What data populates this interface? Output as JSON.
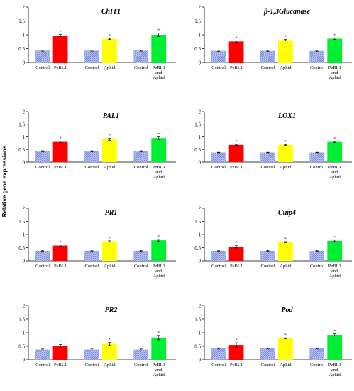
{
  "figure": {
    "ylabel": "Relative gene expressions"
  },
  "colors": {
    "control": "#b8c2ee",
    "control_hatch": "#6f7fd6",
    "PeBL1": "#ff0000",
    "Aphid": "#ffff00",
    "PeBL1 and Aphid": "#00ee33"
  },
  "chart_data": [
    {
      "type": "bar",
      "title": "ChIT1",
      "ylim": [
        0,
        2
      ],
      "yticks": [
        "0",
        "0.5",
        "1",
        "1.5",
        "2"
      ],
      "groups": [
        "PeBL1",
        "Aphid",
        "PeBL1 and Aphid"
      ],
      "bars": [
        {
          "label": "Control",
          "value": 0.43,
          "err": 0.02,
          "star": false,
          "kind": "control"
        },
        {
          "label": "PeBL1",
          "value": 0.97,
          "err": 0.04,
          "star": true,
          "kind": "PeBL1"
        },
        {
          "label": "Control",
          "value": 0.43,
          "err": 0.02,
          "star": false,
          "kind": "control"
        },
        {
          "label": "Aphid",
          "value": 0.85,
          "err": 0.02,
          "star": true,
          "kind": "Aphid"
        },
        {
          "label": "Control",
          "value": 0.43,
          "err": 0.02,
          "star": false,
          "kind": "control"
        },
        {
          "label": "PeBL1 and Aphid",
          "value": 1.0,
          "err": 0.06,
          "star": true,
          "kind": "PeBL1 and Aphid"
        }
      ]
    },
    {
      "type": "bar",
      "title": "β-1,3Glucanase",
      "ylim": [
        0,
        2
      ],
      "yticks": [
        "0",
        "0.5",
        "1",
        "1.5",
        "2"
      ],
      "groups": [
        "PeBL1",
        "Aphid",
        "PeBL1 and Aphid"
      ],
      "bars": [
        {
          "label": "Control",
          "value": 0.42,
          "err": 0.02,
          "star": false,
          "kind": "control"
        },
        {
          "label": "PeBL1",
          "value": 0.76,
          "err": 0.02,
          "star": true,
          "kind": "PeBL1"
        },
        {
          "label": "Control",
          "value": 0.42,
          "err": 0.02,
          "star": false,
          "kind": "control"
        },
        {
          "label": "Aphid",
          "value": 0.81,
          "err": 0.02,
          "star": true,
          "kind": "Aphid"
        },
        {
          "label": "Control",
          "value": 0.42,
          "err": 0.02,
          "star": false,
          "kind": "control"
        },
        {
          "label": "PeBL1 and Aphid",
          "value": 0.86,
          "err": 0.03,
          "star": true,
          "kind": "PeBL1 and Aphid"
        }
      ]
    },
    {
      "type": "bar",
      "title": "PAL1",
      "ylim": [
        0,
        2
      ],
      "yticks": [
        "0",
        "0.5",
        "1",
        "1.5",
        "2"
      ],
      "groups": [
        "PeBL1",
        "Aphid",
        "PeBL1 and Aphid"
      ],
      "bars": [
        {
          "label": "Control",
          "value": 0.43,
          "err": 0.02,
          "star": false,
          "kind": "control"
        },
        {
          "label": "PeBL1",
          "value": 0.8,
          "err": 0.03,
          "star": true,
          "kind": "PeBL1"
        },
        {
          "label": "Control",
          "value": 0.43,
          "err": 0.02,
          "star": false,
          "kind": "control"
        },
        {
          "label": "Aphid",
          "value": 0.9,
          "err": 0.04,
          "star": true,
          "kind": "Aphid"
        },
        {
          "label": "Control",
          "value": 0.43,
          "err": 0.02,
          "star": false,
          "kind": "control"
        },
        {
          "label": "PeBL1 and Aphid",
          "value": 0.95,
          "err": 0.05,
          "star": true,
          "kind": "PeBL1 and Aphid"
        }
      ]
    },
    {
      "type": "bar",
      "title": "LOX1",
      "ylim": [
        0,
        2
      ],
      "yticks": [
        "0",
        "0.5",
        "1",
        "1.5",
        "2"
      ],
      "groups": [
        "PeBL1",
        "Aphid",
        "PeBL1 and Aphid"
      ],
      "bars": [
        {
          "label": "Control",
          "value": 0.38,
          "err": 0.01,
          "star": false,
          "kind": "control"
        },
        {
          "label": "PeBL1",
          "value": 0.68,
          "err": 0.02,
          "star": true,
          "kind": "PeBL1"
        },
        {
          "label": "Control",
          "value": 0.38,
          "err": 0.01,
          "star": false,
          "kind": "control"
        },
        {
          "label": "Aphid",
          "value": 0.68,
          "err": 0.02,
          "star": true,
          "kind": "Aphid"
        },
        {
          "label": "Control",
          "value": 0.38,
          "err": 0.01,
          "star": false,
          "kind": "control"
        },
        {
          "label": "PeBL1 and Aphid",
          "value": 0.8,
          "err": 0.02,
          "star": true,
          "kind": "PeBL1 and Aphid"
        }
      ]
    },
    {
      "type": "bar",
      "title": "PR1",
      "ylim": [
        0,
        2
      ],
      "yticks": [
        "0",
        "0.5",
        "1",
        "1.5",
        "2"
      ],
      "groups": [
        "PeBL1",
        "Aphid",
        "PeBL1 and Aphid"
      ],
      "bars": [
        {
          "label": "Control",
          "value": 0.38,
          "err": 0.02,
          "star": false,
          "kind": "control"
        },
        {
          "label": "PeBL1",
          "value": 0.58,
          "err": 0.03,
          "star": true,
          "kind": "PeBL1"
        },
        {
          "label": "Control",
          "value": 0.38,
          "err": 0.02,
          "star": false,
          "kind": "control"
        },
        {
          "label": "Aphid",
          "value": 0.74,
          "err": 0.02,
          "star": true,
          "kind": "Aphid"
        },
        {
          "label": "Control",
          "value": 0.38,
          "err": 0.02,
          "star": false,
          "kind": "control"
        },
        {
          "label": "PeBL1 and Aphid",
          "value": 0.78,
          "err": 0.03,
          "star": true,
          "kind": "PeBL1 and Aphid"
        }
      ]
    },
    {
      "type": "bar",
      "title": "Cuip4",
      "ylim": [
        0,
        2
      ],
      "yticks": [
        "0",
        "0.5",
        "1",
        "1.5",
        "2"
      ],
      "groups": [
        "PeBL1",
        "Aphid",
        "PeBL1 and Aphid"
      ],
      "bars": [
        {
          "label": "Control",
          "value": 0.38,
          "err": 0.02,
          "star": false,
          "kind": "control"
        },
        {
          "label": "PeBL1",
          "value": 0.54,
          "err": 0.05,
          "star": true,
          "kind": "PeBL1"
        },
        {
          "label": "Control",
          "value": 0.38,
          "err": 0.02,
          "star": false,
          "kind": "control"
        },
        {
          "label": "Aphid",
          "value": 0.71,
          "err": 0.02,
          "star": true,
          "kind": "Aphid"
        },
        {
          "label": "Control",
          "value": 0.38,
          "err": 0.02,
          "star": false,
          "kind": "control"
        },
        {
          "label": "PeBL1 and Aphid",
          "value": 0.76,
          "err": 0.03,
          "star": true,
          "kind": "PeBL1 and Aphid"
        }
      ]
    },
    {
      "type": "bar",
      "title": "PR2",
      "ylim": [
        0,
        2
      ],
      "yticks": [
        "0",
        "0.5",
        "1",
        "1.5",
        "2"
      ],
      "groups": [
        "PeBL1",
        "Aphid",
        "PeBL1 and Aphid"
      ],
      "bars": [
        {
          "label": "Control",
          "value": 0.38,
          "err": 0.02,
          "star": false,
          "kind": "control"
        },
        {
          "label": "PeBL1",
          "value": 0.51,
          "err": 0.06,
          "star": true,
          "kind": "PeBL1"
        },
        {
          "label": "Control",
          "value": 0.38,
          "err": 0.02,
          "star": false,
          "kind": "control"
        },
        {
          "label": "Aphid",
          "value": 0.59,
          "err": 0.05,
          "star": true,
          "kind": "Aphid"
        },
        {
          "label": "Control",
          "value": 0.38,
          "err": 0.02,
          "star": false,
          "kind": "control"
        },
        {
          "label": "PeBL1 and Aphid",
          "value": 0.82,
          "err": 0.08,
          "star": true,
          "kind": "PeBL1 and Aphid"
        }
      ]
    },
    {
      "type": "bar",
      "title": "Pod",
      "ylim": [
        0,
        2
      ],
      "yticks": [
        "0",
        "0.5",
        "1",
        "1.5",
        "2"
      ],
      "groups": [
        "PeBL1",
        "Aphid",
        "PeBL1 and Aphid"
      ],
      "bars": [
        {
          "label": "Control",
          "value": 0.42,
          "err": 0.02,
          "star": false,
          "kind": "control"
        },
        {
          "label": "PeBL1",
          "value": 0.55,
          "err": 0.08,
          "star": true,
          "kind": "PeBL1"
        },
        {
          "label": "Control",
          "value": 0.42,
          "err": 0.02,
          "star": false,
          "kind": "control"
        },
        {
          "label": "Aphid",
          "value": 0.79,
          "err": 0.02,
          "star": true,
          "kind": "Aphid"
        },
        {
          "label": "Control",
          "value": 0.42,
          "err": 0.02,
          "star": false,
          "kind": "control"
        },
        {
          "label": "PeBL1 and Aphid",
          "value": 0.92,
          "err": 0.04,
          "star": true,
          "kind": "PeBL1 and Aphid"
        }
      ]
    }
  ]
}
